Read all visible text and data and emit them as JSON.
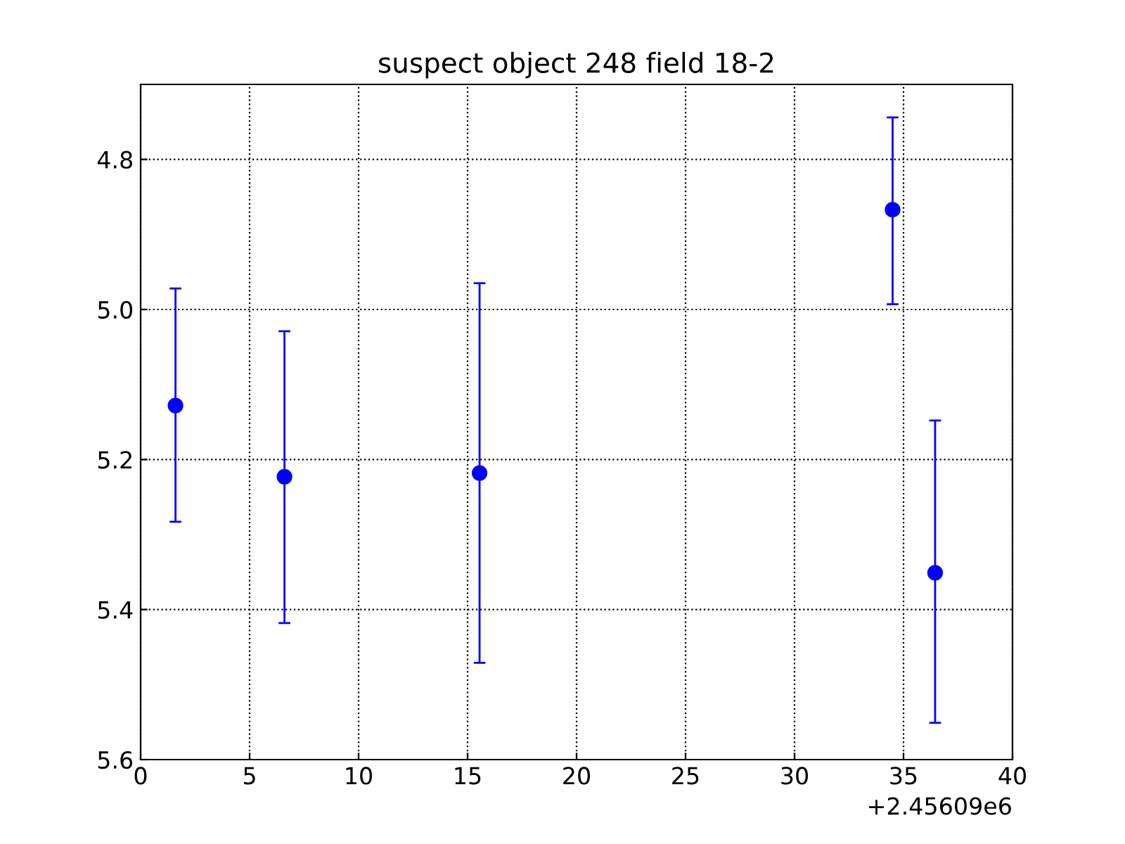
{
  "chart_data": {
    "type": "scatter",
    "title": "suspect object 248 field 18-2",
    "x": [
      1.6,
      6.6,
      15.55,
      34.5,
      36.45
    ],
    "series": [
      {
        "color": "#0000ff",
        "values": [
          5.128,
          5.223,
          5.218,
          4.867,
          5.351
        ],
        "errors": [
          [
            4.972,
            5.283
          ],
          [
            5.029,
            5.418
          ],
          [
            4.965,
            5.471
          ],
          [
            4.744,
            4.993
          ],
          [
            5.148,
            5.551
          ]
        ]
      }
    ],
    "xlim": [
      0,
      40
    ],
    "xticks": [
      0,
      5,
      10,
      15,
      20,
      25,
      30,
      35,
      40
    ],
    "ylim": [
      5.6,
      4.7
    ],
    "yticks": [
      {
        "value": 4.8,
        "label": "4.8"
      },
      {
        "value": 5.0,
        "label": "5.0"
      },
      {
        "value": 5.2,
        "label": "5.2"
      },
      {
        "value": 5.4,
        "label": "5.4"
      },
      {
        "value": 5.6,
        "label": "5.6"
      }
    ],
    "annotations": [
      "+2.45609e6"
    ],
    "grid": true,
    "marker": "circle",
    "line_style": "none"
  }
}
